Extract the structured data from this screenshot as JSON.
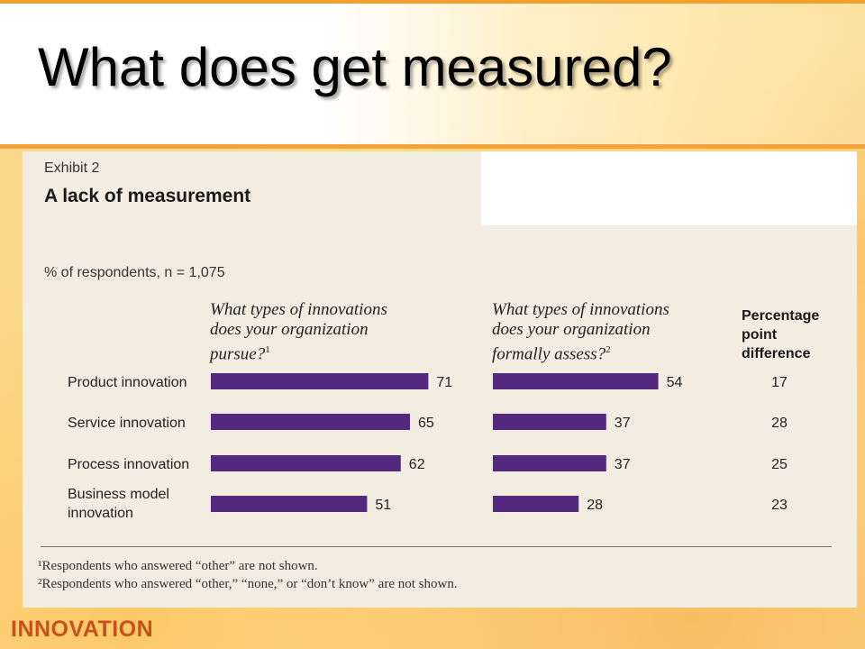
{
  "slide": {
    "title": "What does get measured?",
    "brand": "INNOVATION"
  },
  "exhibit": {
    "label": "Exhibit 2",
    "title": "A lack of measurement",
    "respondents_note": "% of respondents, n = 1,075",
    "col1_heading": [
      "What types of innovations",
      "does your organization",
      "pursue?"
    ],
    "col1_sup": "1",
    "col2_heading": [
      "What types of innovations",
      "does your organization",
      "formally assess?"
    ],
    "col2_sup": "2",
    "diff_heading": [
      "Percentage",
      "point",
      "difference"
    ],
    "footnote1": "¹Respondents who answered “other” are not shown.",
    "footnote2": "²Respondents who answered “other,” “none,” or “don’t know” are not shown."
  },
  "chart_data": {
    "type": "bar",
    "orientation": "horizontal",
    "categories": [
      "Product innovation",
      "Service innovation",
      "Process innovation",
      "Business model innovation"
    ],
    "category_lines": [
      [
        "Product innovation"
      ],
      [
        "Service innovation"
      ],
      [
        "Process innovation"
      ],
      [
        "Business model",
        "innovation"
      ]
    ],
    "series": [
      {
        "name": "What types of innovations does your organization pursue?",
        "values": [
          71,
          65,
          62,
          51
        ]
      },
      {
        "name": "What types of innovations does your organization formally assess?",
        "values": [
          54,
          37,
          37,
          28
        ]
      }
    ],
    "difference": [
      17,
      28,
      25,
      23
    ],
    "bar_color": "#52297f",
    "grid": false
  }
}
